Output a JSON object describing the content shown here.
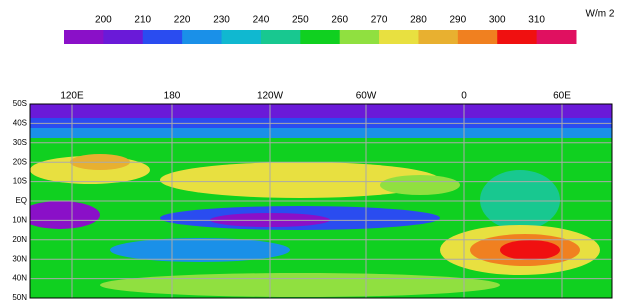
{
  "colorbar": {
    "unit": "W/m 2",
    "ticks": [
      200,
      210,
      220,
      230,
      240,
      250,
      260,
      270,
      280,
      290,
      300,
      310
    ],
    "colors": [
      "#8a10c8",
      "#6a1ad8",
      "#2a4cf0",
      "#1a90e8",
      "#10b8d0",
      "#18c890",
      "#10d020",
      "#90e040",
      "#e8e040",
      "#e8b030",
      "#f08020",
      "#f01010",
      "#e01060"
    ]
  },
  "map": {
    "lon_labels": [
      "120E",
      "180",
      "120W",
      "60W",
      "0",
      "60E"
    ],
    "lat_labels": [
      "50S",
      "40S",
      "30S",
      "20S",
      "10S",
      "EQ",
      "10N",
      "20N",
      "30N",
      "40N",
      "50N"
    ]
  }
}
